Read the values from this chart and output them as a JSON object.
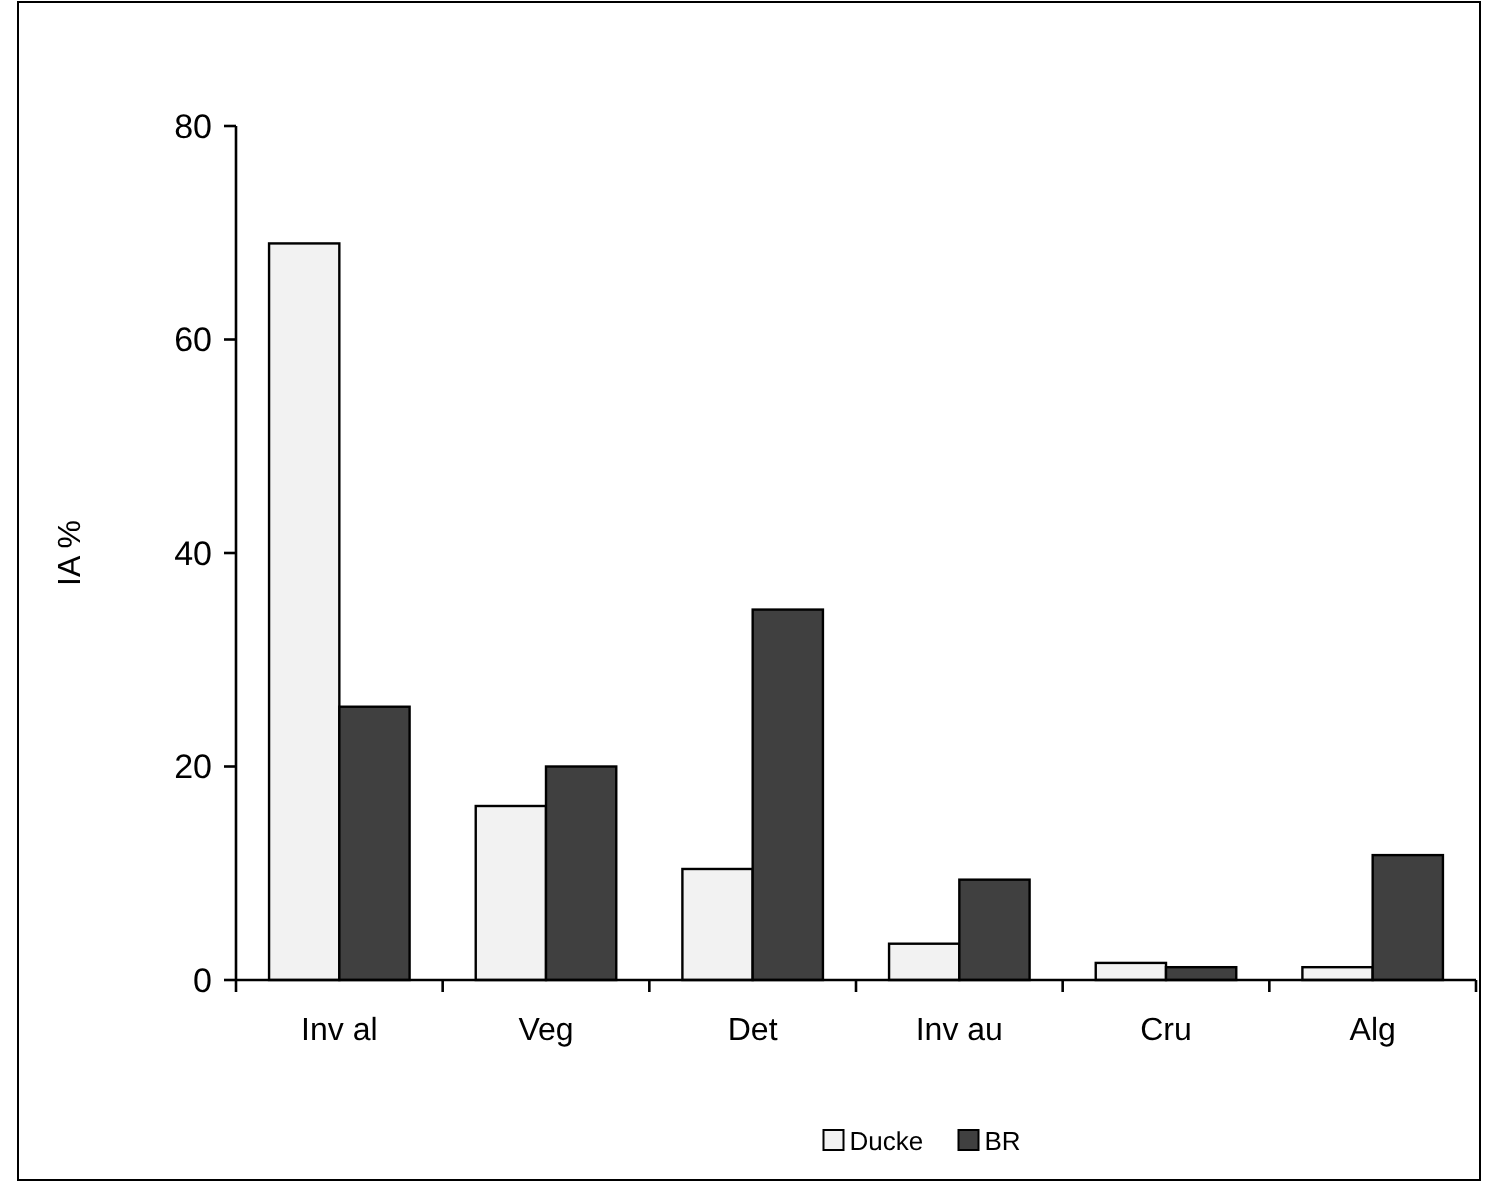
{
  "chart_data": {
    "type": "bar",
    "ylabel": "IA %",
    "categories": [
      "Inv al",
      "Veg",
      "Det",
      "Inv au",
      "Cru",
      "Alg"
    ],
    "series": [
      {
        "name": "Ducke",
        "color": "#f2f2f2",
        "values": [
          69,
          16.3,
          10.4,
          3.4,
          1.6,
          1.2
        ]
      },
      {
        "name": "BR",
        "color": "#404040",
        "values": [
          25.6,
          20,
          34.7,
          9.4,
          1.2,
          11.7
        ]
      }
    ],
    "ylim": [
      0,
      80
    ],
    "yticks": [
      0,
      20,
      40,
      60,
      80
    ],
    "grid": false,
    "legend": "bottom"
  }
}
